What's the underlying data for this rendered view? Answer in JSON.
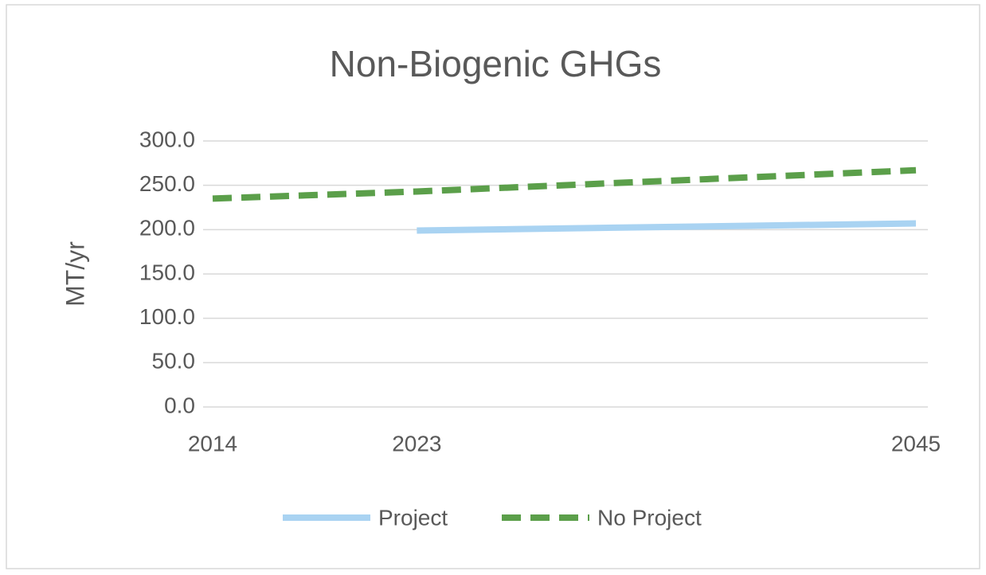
{
  "chart_data": {
    "type": "line",
    "title": "Non-Biogenic GHGs",
    "y_label": "MT/yr",
    "x": [
      2014,
      2023,
      2045
    ],
    "xlim": [
      2014,
      2045
    ],
    "xticks": [
      2014,
      2023,
      2045
    ],
    "ylim": [
      0,
      300
    ],
    "yticks": [
      {
        "value": 0,
        "label": "0.0"
      },
      {
        "value": 50,
        "label": "50.0"
      },
      {
        "value": 100,
        "label": "100.0"
      },
      {
        "value": 150,
        "label": "150.0"
      },
      {
        "value": 200,
        "label": "200.0"
      },
      {
        "value": 250,
        "label": "250.0"
      },
      {
        "value": 300,
        "label": "300.0"
      }
    ],
    "grid": true,
    "legend": "bottom",
    "series": [
      {
        "name": "Project",
        "color": "#a9d3f2",
        "style": "solid",
        "values": [
          null,
          199,
          207
        ]
      },
      {
        "name": "No Project",
        "color": "#5b9f4a",
        "style": "dashed",
        "values": [
          235,
          243,
          267
        ]
      }
    ]
  }
}
